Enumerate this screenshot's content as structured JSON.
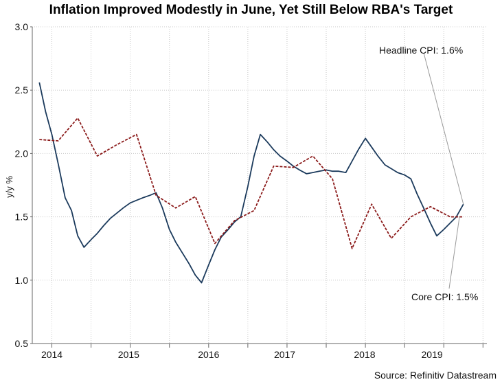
{
  "chart_data": {
    "type": "line",
    "title": "Inflation Improved Modestly in June, Yet Still Below RBA's Target",
    "xlabel": "",
    "ylabel": "y/y %",
    "ylim": [
      0.5,
      3.0
    ],
    "yticks": [
      "0.5",
      "1.0",
      "1.5",
      "2.0",
      "2.5",
      "3.0"
    ],
    "x_range": [
      2013.75,
      2019.55
    ],
    "year_ticks": [
      2014.0,
      2014.5,
      2015.0,
      2015.5,
      2016.0,
      2016.5,
      2017.0,
      2017.5,
      2018.0,
      2018.5,
      2019.0,
      2019.5
    ],
    "year_labels": [
      {
        "label": "2014",
        "x": 2014.0
      },
      {
        "label": "2015",
        "x": 2014.98
      },
      {
        "label": "2016",
        "x": 2016.0
      },
      {
        "label": "2017",
        "x": 2016.97
      },
      {
        "label": "2018",
        "x": 2017.99
      },
      {
        "label": "2019",
        "x": 2018.85
      }
    ],
    "grid": true,
    "series": [
      {
        "name": "Headline CPI",
        "color": "#1b3a5c",
        "style": "solid",
        "x": [
          2013.84,
          2013.92,
          2014.0,
          2014.08,
          2014.17,
          2014.25,
          2014.33,
          2014.41,
          2014.5,
          2014.58,
          2014.66,
          2014.75,
          2014.83,
          2014.91,
          2015.0,
          2015.08,
          2015.16,
          2015.25,
          2015.33,
          2015.41,
          2015.5,
          2015.58,
          2015.66,
          2015.75,
          2015.83,
          2015.91,
          2016.0,
          2016.08,
          2016.16,
          2016.25,
          2016.33,
          2016.41,
          2016.5,
          2016.58,
          2016.66,
          2016.75,
          2016.83,
          2016.91,
          2017.0,
          2017.08,
          2017.16,
          2017.25,
          2017.33,
          2017.41,
          2017.5,
          2017.58,
          2017.66,
          2017.75,
          2017.83,
          2017.91,
          2018.0,
          2018.08,
          2018.16,
          2018.25,
          2018.33,
          2018.41,
          2018.5,
          2018.58,
          2018.66,
          2018.75,
          2018.83,
          2018.91,
          2019.0,
          2019.08,
          2019.16,
          2019.25
        ],
        "values": [
          2.56,
          2.33,
          2.15,
          1.92,
          1.65,
          1.55,
          1.35,
          1.26,
          1.32,
          1.37,
          1.43,
          1.49,
          1.53,
          1.57,
          1.61,
          1.63,
          1.65,
          1.67,
          1.69,
          1.57,
          1.4,
          1.3,
          1.22,
          1.13,
          1.04,
          0.98,
          1.12,
          1.24,
          1.34,
          1.4,
          1.46,
          1.5,
          1.74,
          1.98,
          2.15,
          2.09,
          2.03,
          1.98,
          1.94,
          1.9,
          1.87,
          1.84,
          1.85,
          1.86,
          1.87,
          1.86,
          1.86,
          1.85,
          1.94,
          2.03,
          2.12,
          2.05,
          1.98,
          1.91,
          1.88,
          1.85,
          1.83,
          1.8,
          1.68,
          1.56,
          1.45,
          1.35,
          1.4,
          1.45,
          1.5,
          1.6
        ]
      },
      {
        "name": "Core CPI",
        "color": "#8b1a1a",
        "style": "dashed",
        "x": [
          2013.84,
          2014.08,
          2014.33,
          2014.58,
          2014.83,
          2015.08,
          2015.33,
          2015.58,
          2015.83,
          2016.08,
          2016.33,
          2016.58,
          2016.83,
          2017.08,
          2017.33,
          2017.58,
          2017.83,
          2018.08,
          2018.33,
          2018.58,
          2018.83,
          2019.08,
          2019.25
        ],
        "values": [
          2.11,
          2.1,
          2.28,
          1.98,
          2.07,
          2.15,
          1.67,
          1.57,
          1.66,
          1.29,
          1.47,
          1.55,
          1.9,
          1.89,
          1.98,
          1.8,
          1.25,
          1.6,
          1.33,
          1.5,
          1.58,
          1.5,
          1.5
        ]
      }
    ],
    "annotations": [
      {
        "text": "Headline CPI: 1.6%",
        "anchor_x": 2019.25,
        "anchor_y": 1.6
      },
      {
        "text": "Core CPI: 1.5%",
        "anchor_x": 2019.2,
        "anchor_y": 1.5
      }
    ],
    "source": "Source: Refinitiv Datastream"
  }
}
